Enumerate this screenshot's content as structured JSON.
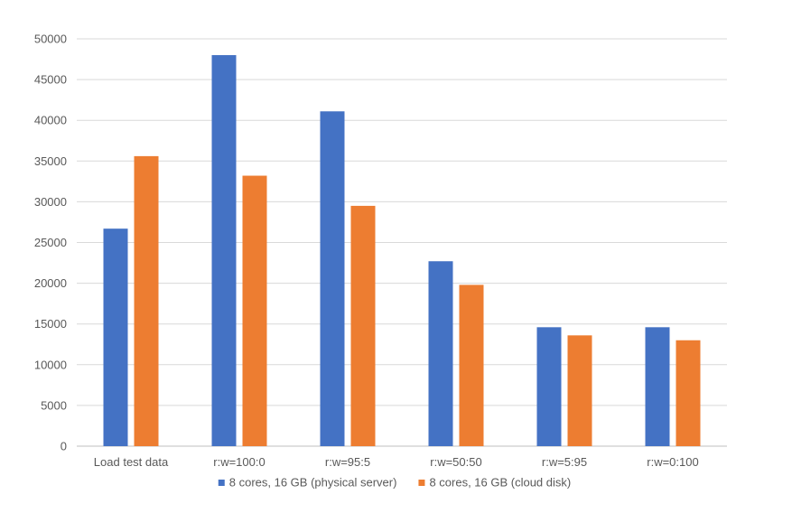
{
  "chart_data": {
    "type": "bar",
    "categories": [
      "Load test data",
      "r:w=100:0",
      "r:w=95:5",
      "r:w=50:50",
      "r:w=5:95",
      "r:w=0:100"
    ],
    "series": [
      {
        "name": "8 cores, 16 GB (physical server)",
        "color": "#4472C4",
        "values": [
          26700,
          48000,
          41100,
          22700,
          14600,
          14600
        ]
      },
      {
        "name": "8 cores, 16 GB (cloud disk)",
        "color": "#ED7D31",
        "values": [
          35600,
          33200,
          29500,
          19800,
          13600,
          13000
        ]
      }
    ],
    "yticks": [
      "0",
      "5000",
      "10000",
      "15000",
      "20000",
      "25000",
      "30000",
      "35000",
      "40000",
      "45000",
      "50000"
    ],
    "ylim": [
      0,
      50000
    ],
    "grid": true,
    "legend_position": "bottom"
  }
}
